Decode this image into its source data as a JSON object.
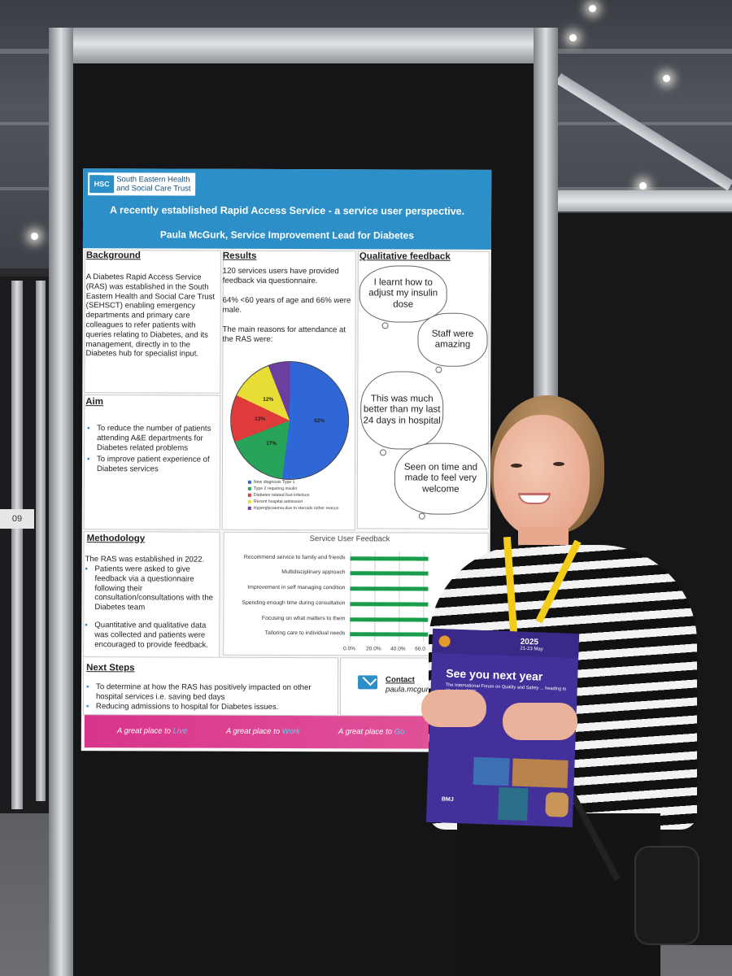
{
  "poster": {
    "org_logo": "HSC",
    "org_name_line1": "South Eastern Health",
    "org_name_line2": "and Social Care Trust",
    "title": "A recently established Rapid Access Service - a service user perspective.",
    "author": "Paula McGurk, Service Improvement Lead for Diabetes",
    "background": {
      "heading": "Background",
      "text": "A Diabetes Rapid Access Service (RAS) was established in the South Eastern Health and Social Care Trust (SEHSCT) enabling emergency departments and primary care colleagues to refer patients with queries relating to Diabetes, and its management, directly in to the Diabetes hub for specialist input."
    },
    "aim": {
      "heading": "Aim",
      "bullets": [
        "To reduce the number of patients attending A&E departments for Diabetes related problems",
        "To improve patient experience of Diabetes services"
      ]
    },
    "methodology": {
      "heading": "Methodology",
      "intro": "The RAS was established in 2022.",
      "bullets": [
        "Patients were asked to give feedback via a questionnaire following their consultation/consultations with the Diabetes team",
        "Quantitative and qualitative data was collected and patients were encouraged to provide feedback."
      ]
    },
    "results": {
      "heading": "Results",
      "p1": "120 services users have provided feedback via questionnaire.",
      "p2": "64% <60 years of age and 66% were male.",
      "p3": "The main reasons for attendance at the RAS were:",
      "pie_labels": [
        "52%",
        "17%",
        "13%",
        "12%"
      ],
      "legend": [
        "New diagnosis Type 1",
        "Type 2 requiring insulin",
        "Diabetes related foot infection",
        "Recent hospital admission",
        "Hyperglycaemia due to steroids /other reason"
      ],
      "pie_values": [
        52,
        17,
        13,
        12,
        6
      ],
      "pie_colors": [
        "#2f67d6",
        "#27a35a",
        "#e03b3b",
        "#e8dd35",
        "#6b3fa0"
      ]
    },
    "qualitative": {
      "heading": "Qualitative feedback",
      "quotes": [
        "I learnt how to adjust my insulin dose",
        "Staff were amazing",
        "This was much better than my last 24 days in hospital",
        "Seen on time and made to feel very welcome"
      ]
    },
    "feedback_chart": {
      "title": "Service User Feedback",
      "categories": [
        "Recommend service to family and friends",
        "Multidisciplinary approach",
        "Improvement in self managing condition",
        "Spending enough time during consultation",
        "Focusing on what matters to them",
        "Tailoring care to individual needs"
      ],
      "ticks": [
        "0.0%",
        "20.0%",
        "40.0%",
        "60.0"
      ],
      "bar_color": "#1a9d4b"
    },
    "next_steps": {
      "heading": "Next Steps",
      "bullets": [
        "To determine at how the RAS has positively impacted on other hospital services i.e. saving bed days",
        "Reducing admissions to hospital for Diabetes issues."
      ]
    },
    "contact": {
      "label": "Contact",
      "email": "paula.mcgurk"
    },
    "footer": {
      "prefix": "A great place to",
      "words": [
        "Live",
        "Work",
        "Go"
      ]
    }
  },
  "booklet": {
    "year": "2025",
    "dates": "21-23 May",
    "headline": "See you next year",
    "sub": "The International Forum on Quality and Safety ... heading to Utrecht in 2025.",
    "footer": "BMJ"
  },
  "booth_number": "09"
}
